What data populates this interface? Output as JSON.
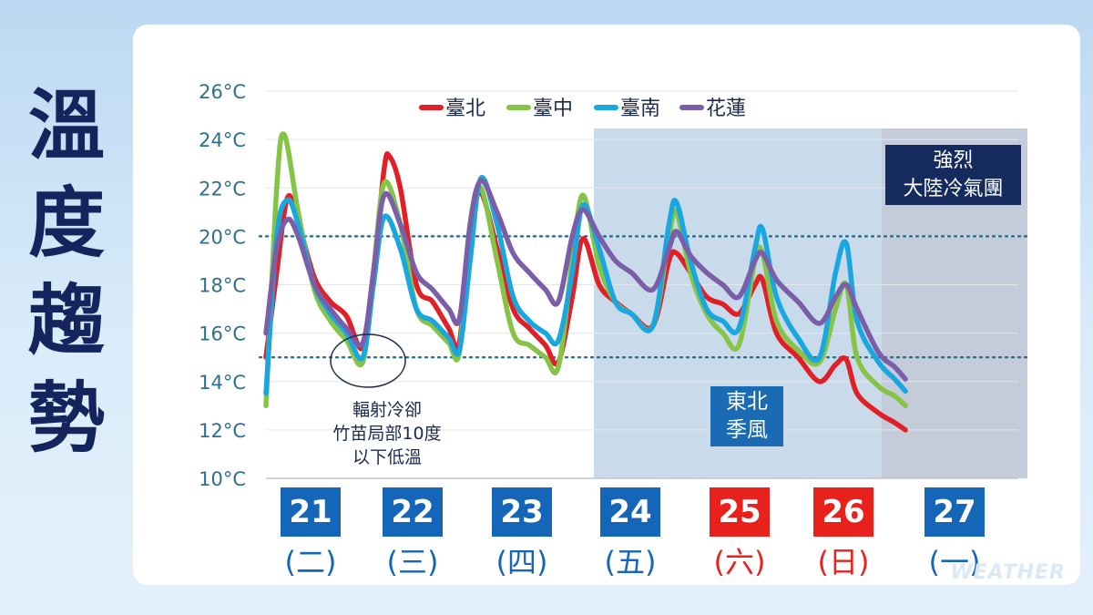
{
  "side_title": [
    "溫",
    "度",
    "趨",
    "勢"
  ],
  "watermark": "WEATHER",
  "colors": {
    "taipei": "#e11f26",
    "taichung": "#86c447",
    "tainan": "#1aa7e0",
    "hualien": "#7a5ea8",
    "weekday": "#1565b8",
    "weekend": "#e8211d",
    "axis_text": "#2e6f8e",
    "ne_band": "#c9dbea",
    "cold_band": "#c4cbd9",
    "ref_line": "#2e6f8e"
  },
  "annotations": {
    "radiative_cooling": [
      "輻射冷卻",
      "竹苗局部10度",
      "以下低溫"
    ],
    "northeast_monsoon": [
      "東北",
      "季風"
    ],
    "cold_air_mass": [
      "強烈",
      "大陸冷氣團"
    ]
  },
  "days": [
    {
      "num": "21",
      "week": "(二)",
      "weekend": false
    },
    {
      "num": "22",
      "week": "(三)",
      "weekend": false
    },
    {
      "num": "23",
      "week": "(四)",
      "weekend": false
    },
    {
      "num": "24",
      "week": "(五)",
      "weekend": false
    },
    {
      "num": "25",
      "week": "(六)",
      "weekend": true
    },
    {
      "num": "26",
      "week": "(日)",
      "weekend": true
    },
    {
      "num": "27",
      "week": "(一)",
      "weekend": false
    }
  ],
  "chart_data": {
    "type": "line",
    "ylim": [
      10,
      26
    ],
    "y_ticks": [
      "10°C",
      "12°C",
      "14°C",
      "16°C",
      "18°C",
      "20°C",
      "22°C",
      "24°C",
      "26°C"
    ],
    "legend_position": "top",
    "reference_lines": [
      20,
      15
    ],
    "x_day_range": [
      21,
      28
    ],
    "series": [
      {
        "name": "臺北",
        "key": "taipei",
        "points": [
          [
            21.0,
            15.0
          ],
          [
            21.1,
            18.5
          ],
          [
            21.2,
            21.6
          ],
          [
            21.3,
            20.6
          ],
          [
            21.45,
            18.3
          ],
          [
            21.6,
            17.3
          ],
          [
            21.75,
            16.7
          ],
          [
            21.9,
            15.4
          ],
          [
            22.0,
            18.5
          ],
          [
            22.1,
            22.8
          ],
          [
            22.15,
            23.3
          ],
          [
            22.25,
            22.0
          ],
          [
            22.4,
            18.0
          ],
          [
            22.55,
            17.3
          ],
          [
            22.7,
            16.2
          ],
          [
            22.8,
            15.6
          ],
          [
            22.9,
            20.5
          ],
          [
            23.0,
            21.8
          ],
          [
            23.15,
            19.5
          ],
          [
            23.3,
            17.0
          ],
          [
            23.45,
            16.2
          ],
          [
            23.6,
            15.5
          ],
          [
            23.72,
            14.8
          ],
          [
            23.85,
            17.5
          ],
          [
            23.95,
            19.9
          ],
          [
            24.1,
            18.0
          ],
          [
            24.25,
            17.3
          ],
          [
            24.4,
            16.8
          ],
          [
            24.6,
            16.3
          ],
          [
            24.75,
            19.0
          ],
          [
            24.82,
            19.3
          ],
          [
            24.95,
            18.5
          ],
          [
            25.1,
            17.5
          ],
          [
            25.25,
            17.2
          ],
          [
            25.4,
            16.8
          ],
          [
            25.55,
            18.0
          ],
          [
            25.62,
            18.2
          ],
          [
            25.75,
            16.0
          ],
          [
            25.95,
            15.0
          ],
          [
            26.15,
            14.0
          ],
          [
            26.3,
            14.7
          ],
          [
            26.4,
            14.9
          ],
          [
            26.5,
            13.5
          ],
          [
            26.7,
            12.7
          ],
          [
            26.85,
            12.3
          ],
          [
            26.95,
            12.0
          ]
        ]
      },
      {
        "name": "臺中",
        "key": "taichung",
        "points": [
          [
            21.0,
            13.0
          ],
          [
            21.1,
            22.0
          ],
          [
            21.17,
            24.2
          ],
          [
            21.3,
            21.0
          ],
          [
            21.45,
            17.8
          ],
          [
            21.6,
            16.5
          ],
          [
            21.75,
            15.7
          ],
          [
            21.9,
            14.8
          ],
          [
            22.0,
            18.5
          ],
          [
            22.1,
            22.2
          ],
          [
            22.25,
            20.5
          ],
          [
            22.4,
            17.0
          ],
          [
            22.55,
            16.3
          ],
          [
            22.7,
            15.6
          ],
          [
            22.8,
            15.2
          ],
          [
            22.9,
            20.5
          ],
          [
            23.0,
            22.0
          ],
          [
            23.15,
            19.0
          ],
          [
            23.3,
            16.0
          ],
          [
            23.45,
            15.5
          ],
          [
            23.6,
            15.0
          ],
          [
            23.72,
            14.6
          ],
          [
            23.85,
            19.0
          ],
          [
            23.95,
            21.7
          ],
          [
            24.1,
            18.8
          ],
          [
            24.25,
            17.3
          ],
          [
            24.4,
            16.8
          ],
          [
            24.6,
            16.3
          ],
          [
            24.75,
            20.0
          ],
          [
            24.82,
            21.0
          ],
          [
            24.95,
            18.5
          ],
          [
            25.1,
            16.8
          ],
          [
            25.25,
            16.0
          ],
          [
            25.4,
            15.5
          ],
          [
            25.55,
            19.0
          ],
          [
            25.62,
            19.3
          ],
          [
            25.75,
            16.5
          ],
          [
            25.95,
            15.3
          ],
          [
            26.15,
            14.8
          ],
          [
            26.3,
            17.0
          ],
          [
            26.4,
            18.0
          ],
          [
            26.5,
            15.0
          ],
          [
            26.7,
            13.8
          ],
          [
            26.85,
            13.4
          ],
          [
            26.95,
            13.0
          ]
        ]
      },
      {
        "name": "臺南",
        "key": "tainan",
        "points": [
          [
            21.0,
            13.5
          ],
          [
            21.1,
            20.0
          ],
          [
            21.2,
            21.5
          ],
          [
            21.3,
            20.5
          ],
          [
            21.45,
            18.0
          ],
          [
            21.6,
            16.8
          ],
          [
            21.75,
            16.0
          ],
          [
            21.9,
            15.0
          ],
          [
            22.0,
            18.0
          ],
          [
            22.1,
            20.8
          ],
          [
            22.25,
            19.5
          ],
          [
            22.4,
            17.0
          ],
          [
            22.55,
            16.5
          ],
          [
            22.7,
            15.8
          ],
          [
            22.8,
            15.3
          ],
          [
            22.9,
            19.0
          ],
          [
            23.0,
            22.4
          ],
          [
            23.15,
            20.5
          ],
          [
            23.3,
            17.5
          ],
          [
            23.45,
            16.5
          ],
          [
            23.6,
            16.0
          ],
          [
            23.72,
            15.7
          ],
          [
            23.85,
            18.5
          ],
          [
            23.95,
            21.3
          ],
          [
            24.1,
            19.5
          ],
          [
            24.25,
            17.3
          ],
          [
            24.4,
            16.8
          ],
          [
            24.6,
            16.3
          ],
          [
            24.75,
            20.5
          ],
          [
            24.82,
            21.4
          ],
          [
            24.95,
            19.0
          ],
          [
            25.1,
            17.0
          ],
          [
            25.25,
            16.5
          ],
          [
            25.4,
            16.2
          ],
          [
            25.55,
            19.5
          ],
          [
            25.62,
            20.3
          ],
          [
            25.75,
            17.5
          ],
          [
            25.95,
            15.8
          ],
          [
            26.15,
            15.0
          ],
          [
            26.3,
            18.5
          ],
          [
            26.4,
            19.7
          ],
          [
            26.5,
            16.5
          ],
          [
            26.7,
            14.8
          ],
          [
            26.85,
            14.1
          ],
          [
            26.95,
            13.6
          ]
        ]
      },
      {
        "name": "花蓮",
        "key": "hualien",
        "points": [
          [
            21.0,
            16.0
          ],
          [
            21.1,
            19.5
          ],
          [
            21.2,
            20.7
          ],
          [
            21.3,
            20.0
          ],
          [
            21.45,
            18.0
          ],
          [
            21.6,
            17.0
          ],
          [
            21.75,
            16.2
          ],
          [
            21.9,
            15.6
          ],
          [
            22.0,
            18.5
          ],
          [
            22.1,
            21.7
          ],
          [
            22.25,
            20.5
          ],
          [
            22.4,
            18.5
          ],
          [
            22.55,
            17.8
          ],
          [
            22.7,
            17.0
          ],
          [
            22.8,
            16.6
          ],
          [
            22.9,
            20.5
          ],
          [
            23.0,
            22.3
          ],
          [
            23.15,
            21.0
          ],
          [
            23.3,
            19.3
          ],
          [
            23.45,
            18.5
          ],
          [
            23.6,
            17.8
          ],
          [
            23.72,
            17.3
          ],
          [
            23.85,
            20.0
          ],
          [
            23.95,
            21.1
          ],
          [
            24.1,
            20.0
          ],
          [
            24.25,
            19.0
          ],
          [
            24.4,
            18.5
          ],
          [
            24.6,
            17.8
          ],
          [
            24.75,
            19.5
          ],
          [
            24.82,
            20.2
          ],
          [
            24.95,
            19.2
          ],
          [
            25.1,
            18.5
          ],
          [
            25.25,
            18.0
          ],
          [
            25.4,
            17.5
          ],
          [
            25.55,
            19.0
          ],
          [
            25.62,
            19.3
          ],
          [
            25.75,
            18.2
          ],
          [
            25.95,
            17.3
          ],
          [
            26.15,
            16.4
          ],
          [
            26.3,
            17.5
          ],
          [
            26.4,
            18.0
          ],
          [
            26.5,
            17.0
          ],
          [
            26.7,
            15.2
          ],
          [
            26.85,
            14.6
          ],
          [
            26.95,
            14.1
          ]
        ]
      }
    ]
  }
}
